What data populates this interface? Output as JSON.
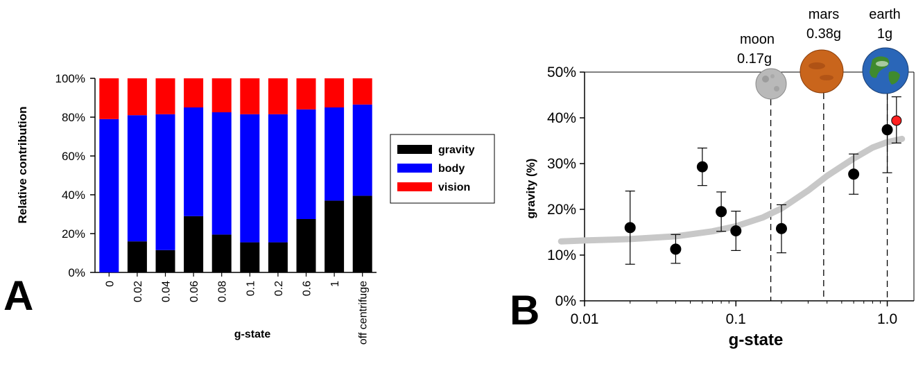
{
  "panels": {
    "a": {
      "letter": "A"
    },
    "b": {
      "letter": "B"
    }
  },
  "colors": {
    "gravity": "#000000",
    "body": "#0000ff",
    "vision": "#ff0000",
    "earth_point": "#ff2020",
    "fit_curve": "#c8c8c8",
    "moon": "#b9b9b9",
    "mars": "#c9651c",
    "earth_land": "#3f8a2e",
    "earth_sea": "#2a66b8"
  },
  "chart_data": [
    {
      "type": "bar",
      "stacked": true,
      "categories": [
        "0",
        "0.02",
        "0.04",
        "0.06",
        "0.08",
        "0.1",
        "0.2",
        "0.6",
        "1",
        "off centrifuge"
      ],
      "series": [
        {
          "name": "gravity",
          "values": [
            0,
            16,
            11.5,
            29,
            19.5,
            15.5,
            15.5,
            27.5,
            37,
            39.5
          ]
        },
        {
          "name": "body",
          "values": [
            79,
            65,
            70,
            56,
            63,
            66,
            66,
            56.5,
            48,
            47
          ]
        },
        {
          "name": "vision",
          "values": [
            21,
            19,
            18.5,
            15,
            17.5,
            18.5,
            18.5,
            16,
            15,
            13.5
          ]
        }
      ],
      "xlabel": "g-state",
      "ylabel": "Relative contribution",
      "ylim": [
        0,
        100
      ],
      "yticks": [
        "0%",
        "20%",
        "40%",
        "60%",
        "80%",
        "100%"
      ],
      "legend": {
        "position": "right",
        "entries": [
          "gravity",
          "body",
          "vision"
        ]
      }
    },
    {
      "type": "scatter",
      "x_scale": "log",
      "xlim": [
        0.01,
        1.5
      ],
      "xticks": [
        "0.01",
        "0.1",
        "1.0"
      ],
      "ylim": [
        0,
        50
      ],
      "yticks": [
        "0%",
        "10%",
        "20%",
        "30%",
        "40%",
        "50%"
      ],
      "xlabel": "g-state",
      "ylabel": "gravity (%)",
      "points": [
        {
          "x": 0.02,
          "y": 16,
          "err_lo": 8,
          "err_hi": 24
        },
        {
          "x": 0.04,
          "y": 11.3,
          "err_lo": 8.2,
          "err_hi": 14.5
        },
        {
          "x": 0.06,
          "y": 29.3,
          "err_lo": 25.2,
          "err_hi": 33.4
        },
        {
          "x": 0.08,
          "y": 19.5,
          "err_lo": 15.2,
          "err_hi": 23.8
        },
        {
          "x": 0.1,
          "y": 15.3,
          "err_lo": 11,
          "err_hi": 19.6
        },
        {
          "x": 0.2,
          "y": 15.8,
          "err_lo": 10.5,
          "err_hi": 21
        },
        {
          "x": 0.6,
          "y": 27.7,
          "err_lo": 23.3,
          "err_hi": 32.1
        },
        {
          "x": 1.0,
          "y": 37.4,
          "err_lo": 28,
          "err_hi": 46.2
        },
        {
          "x": 1.15,
          "y": 39.4,
          "err_lo": 34.5,
          "err_hi": 44.6,
          "highlight": true
        }
      ],
      "fit_curve": [
        {
          "x": 0.007,
          "y": 13
        },
        {
          "x": 0.01,
          "y": 13.2
        },
        {
          "x": 0.02,
          "y": 13.5
        },
        {
          "x": 0.04,
          "y": 14.1
        },
        {
          "x": 0.07,
          "y": 15.2
        },
        {
          "x": 0.1,
          "y": 16.3
        },
        {
          "x": 0.15,
          "y": 18.2
        },
        {
          "x": 0.2,
          "y": 20.2
        },
        {
          "x": 0.3,
          "y": 24.1
        },
        {
          "x": 0.4,
          "y": 27.3
        },
        {
          "x": 0.6,
          "y": 31.1
        },
        {
          "x": 0.8,
          "y": 33.5
        },
        {
          "x": 1.0,
          "y": 34.7
        },
        {
          "x": 1.25,
          "y": 35.4
        }
      ],
      "reference_lines": [
        {
          "x": 0.17,
          "name": "moon",
          "value": "0.17g"
        },
        {
          "x": 0.38,
          "name": "mars",
          "value": "0.38g"
        },
        {
          "x": 1.0,
          "name": "earth",
          "value": "1g"
        }
      ]
    }
  ]
}
